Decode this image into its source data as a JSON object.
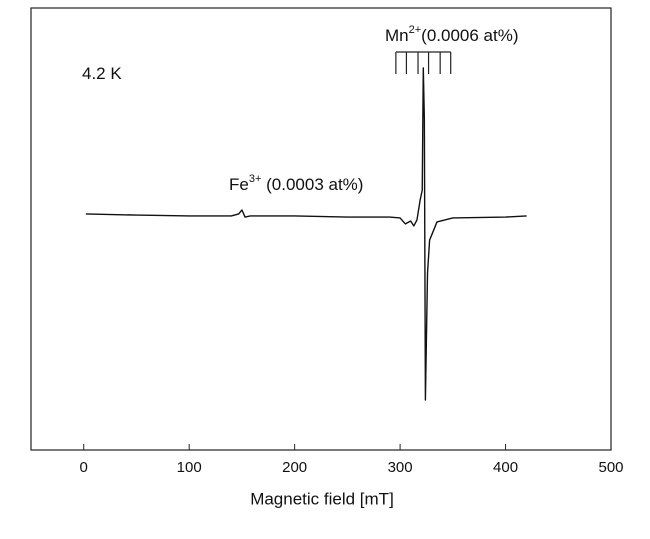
{
  "chart_data": {
    "type": "line",
    "xlabel": "Magnetic field [mT]",
    "xlim": [
      -50,
      500
    ],
    "xticks": [
      0,
      100,
      200,
      300,
      400,
      500
    ],
    "ylim": [
      -1,
      1
    ],
    "series": [
      {
        "color": "#111111",
        "x": [
          2,
          50,
          100,
          140,
          147,
          150,
          153,
          158,
          200,
          250,
          290,
          300,
          305,
          310,
          313,
          316,
          319,
          321,
          322,
          323,
          324,
          326,
          328,
          335,
          350,
          400,
          420
        ],
        "values": [
          0.068,
          0.063,
          0.059,
          0.059,
          0.068,
          0.086,
          0.054,
          0.059,
          0.059,
          0.054,
          0.054,
          0.05,
          0.023,
          0.036,
          0.014,
          0.041,
          0.131,
          0.176,
          0.729,
          0.5,
          -0.774,
          -0.2,
          -0.05,
          0.032,
          0.05,
          0.054,
          0.059
        ]
      }
    ],
    "hyperfine_lines": [
      296,
      306,
      317,
      327,
      338,
      348
    ],
    "annotations": [
      {
        "base": "4.2 K"
      },
      {
        "base": "Fe",
        "sup": "3+",
        "rest": " (0.0003 at%)"
      },
      {
        "base": "Mn",
        "sup": "2+",
        "rest": "(0.0006 at%)"
      }
    ]
  }
}
